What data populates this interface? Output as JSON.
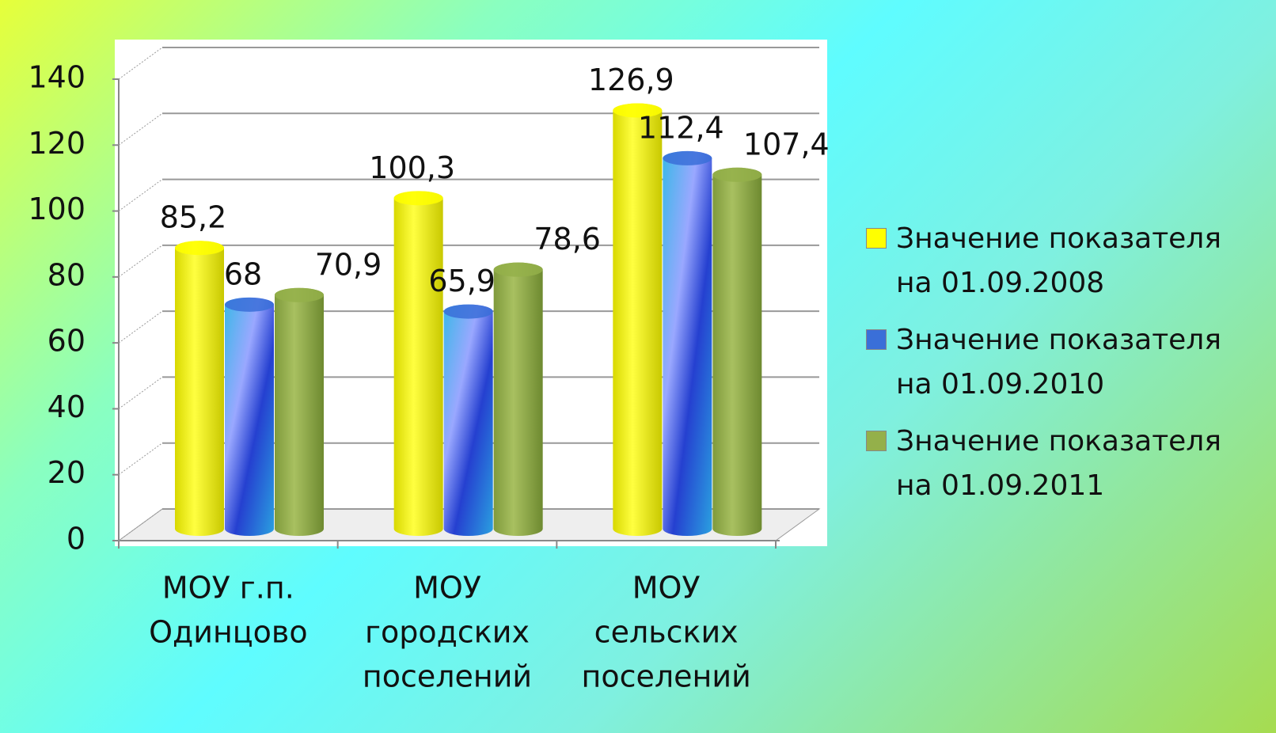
{
  "chart_data": {
    "type": "bar3d",
    "categories": [
      [
        "МОУ г.п.",
        "Одинцово"
      ],
      [
        "МОУ",
        "городских",
        "поселений"
      ],
      [
        "МОУ",
        "сельских",
        "поселений"
      ]
    ],
    "series": [
      {
        "name": "Значение показателя на 01.09.2008",
        "color": "#ffff00",
        "values": [
          85.2,
          100.3,
          126.9
        ],
        "value_labels": [
          "85,2",
          "100,3",
          "126,9"
        ]
      },
      {
        "name": "Значение показателя на 01.09.2010",
        "color": "#3a6fd8",
        "values": [
          68,
          65.9,
          112.4
        ],
        "value_labels": [
          "68",
          "65,9",
          "112,4"
        ]
      },
      {
        "name": "Значение показателя на 01.09.2011",
        "color": "#94b04a",
        "values": [
          70.9,
          78.6,
          107.4
        ],
        "value_labels": [
          "70,9",
          "78,6",
          "107,4"
        ]
      }
    ],
    "ylim": [
      0,
      140
    ],
    "yticks": [
      0,
      20,
      40,
      60,
      80,
      100,
      120,
      140
    ],
    "grid": true,
    "legend": "right"
  }
}
